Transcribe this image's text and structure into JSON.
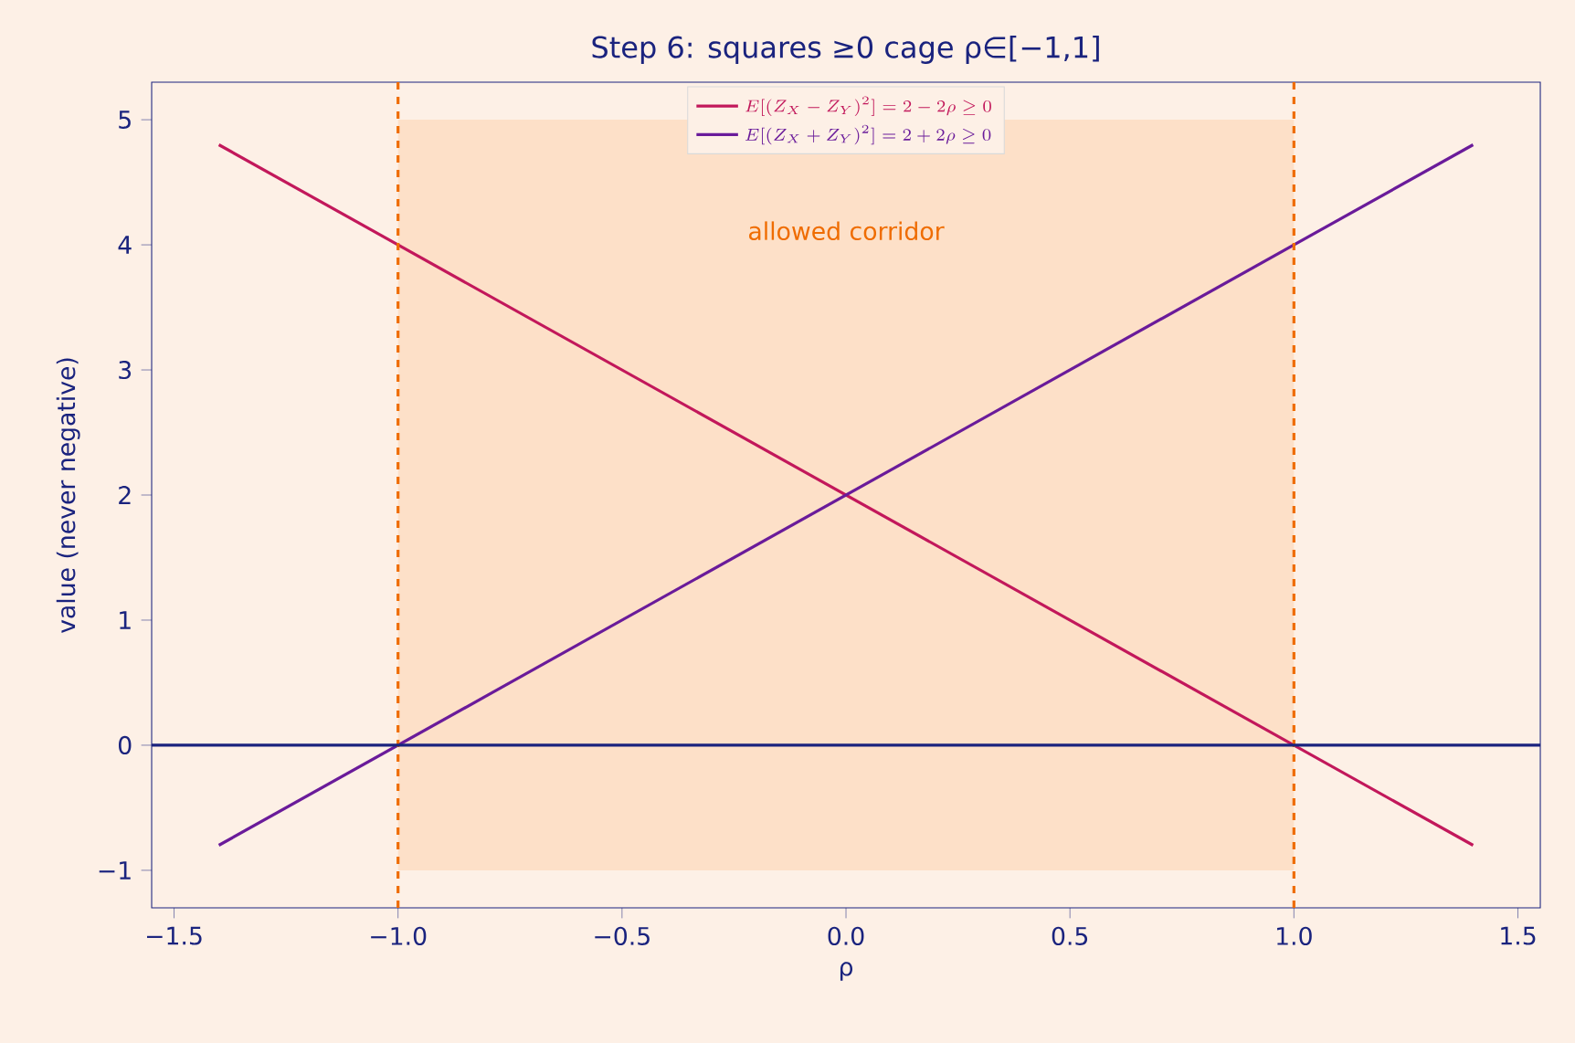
{
  "chart_data": {
    "type": "line",
    "title": "Step 6: squares ≥0 cage ρ∈[−1,1]",
    "xlabel": "ρ",
    "ylabel": "value (never negative)",
    "series": [
      {
        "name": "E[(Z_X - Z_Y)^2] = 2 - 2\\rho \\geq 0",
        "color": "#c2185b",
        "x": [
          -1.4,
          1.4
        ],
        "values": [
          4.8,
          -0.8
        ]
      },
      {
        "name": "E[(Z_X + Z_Y)^2] = 2 + 2\\rho \\geq 0",
        "color": "#6a1b9a",
        "x": [
          -1.4,
          1.4
        ],
        "values": [
          -0.8,
          4.8
        ]
      },
      {
        "type": "area",
        "color": "#fde0c8",
        "x": [
          -1,
          1,
          1,
          -1
        ],
        "values": [
          5,
          5,
          -1,
          -1
        ]
      }
    ],
    "annotations": [
      "allowed corridor"
    ],
    "ref_lines": [
      {
        "axis": "x",
        "value": -1,
        "color": "#ef6c00",
        "line_style": "dashed"
      },
      {
        "axis": "x",
        "value": 1,
        "color": "#ef6c00",
        "line_style": "dashed"
      },
      {
        "axis": "y",
        "value": 0,
        "color": "#1a237e",
        "line_style": "solid"
      }
    ],
    "xlim": [
      -1.55,
      1.55
    ],
    "ylim": [
      -1.3,
      5.3
    ],
    "xticks": [
      {
        "value": -1.5,
        "label": "−1.5"
      },
      {
        "value": -1.0,
        "label": "−1.0"
      },
      {
        "value": -0.5,
        "label": "−0.5"
      },
      {
        "value": 0,
        "label": "0.0"
      },
      {
        "value": 0.5,
        "label": "0.5"
      },
      {
        "value": 1.0,
        "label": "1.0"
      },
      {
        "value": 1.5,
        "label": "1.5"
      }
    ],
    "yticks": [
      {
        "value": -1,
        "label": "−1"
      },
      0,
      1,
      2,
      3,
      4,
      5
    ],
    "legend": "top",
    "grid": false,
    "marker": "none",
    "line_style": "solid"
  }
}
